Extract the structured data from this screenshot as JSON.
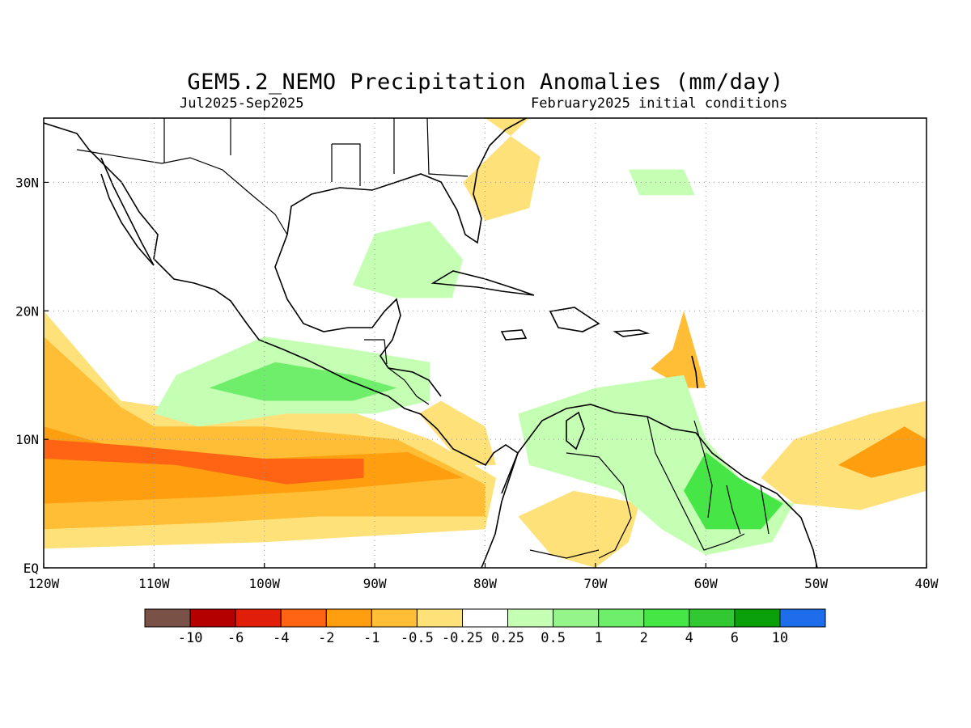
{
  "title": "GEM5.2_NEMO Precipitation Anomalies (mm/day)",
  "subtitle_left": "Jul2025-Sep2025",
  "subtitle_right": "February2025 initial conditions",
  "map": {
    "lon_range": [
      -120,
      -40
    ],
    "lat_range": [
      0,
      35
    ],
    "x_ticks": [
      {
        "value": -120,
        "label": "120W"
      },
      {
        "value": -110,
        "label": "110W"
      },
      {
        "value": -100,
        "label": "100W"
      },
      {
        "value": -90,
        "label": "90W"
      },
      {
        "value": -80,
        "label": "80W"
      },
      {
        "value": -70,
        "label": "70W"
      },
      {
        "value": -60,
        "label": "60W"
      },
      {
        "value": -50,
        "label": "50W"
      },
      {
        "value": -40,
        "label": "40W"
      }
    ],
    "y_ticks": [
      {
        "value": 0,
        "label": "EQ"
      },
      {
        "value": 10,
        "label": "10N"
      },
      {
        "value": 20,
        "label": "20N"
      },
      {
        "value": 30,
        "label": "30N"
      }
    ],
    "grid": "dotted"
  },
  "colorbar": {
    "colors": [
      "#7a5146",
      "#b40000",
      "#e01e0a",
      "#ff6414",
      "#ff9f10",
      "#ffbe36",
      "#ffe17a",
      "#ffffff",
      "#c4ffb4",
      "#96f58a",
      "#6eee6a",
      "#46e646",
      "#32c832",
      "#0aa00a",
      "#1e6eeb"
    ],
    "labels": [
      "-10",
      "-6",
      "-4",
      "-2",
      "-1",
      "-0.5",
      "-0.25",
      "0.25",
      "0.5",
      "1",
      "2",
      "4",
      "6",
      "10"
    ]
  },
  "chart_data": {
    "type": "heatmap",
    "variable": "Precipitation Anomalies (mm/day)",
    "levels": [
      -10,
      -6,
      -4,
      -2,
      -1,
      -0.5,
      -0.25,
      0.25,
      0.5,
      1,
      2,
      4,
      6,
      10
    ],
    "regions": [
      {
        "level": -0.5,
        "lonlat": [
          [
            -120,
            1.5
          ],
          [
            -100,
            2
          ],
          [
            -90,
            2.5
          ],
          [
            -80,
            3
          ],
          [
            -79,
            7
          ],
          [
            -85,
            10
          ],
          [
            -95,
            13
          ],
          [
            -105,
            12
          ],
          [
            -113,
            13
          ],
          [
            -120,
            20
          ]
        ]
      },
      {
        "level": -1,
        "lonlat": [
          [
            -120,
            3
          ],
          [
            -105,
            3.5
          ],
          [
            -95,
            4
          ],
          [
            -80,
            4
          ],
          [
            -80,
            6.5
          ],
          [
            -88,
            10
          ],
          [
            -100,
            11
          ],
          [
            -110,
            11
          ],
          [
            -113,
            12.5
          ],
          [
            -120,
            18
          ]
        ]
      },
      {
        "level": -2,
        "lonlat": [
          [
            -120,
            5
          ],
          [
            -105,
            5.5
          ],
          [
            -95,
            6
          ],
          [
            -82,
            7
          ],
          [
            -87,
            9
          ],
          [
            -100,
            8.5
          ],
          [
            -112,
            9
          ],
          [
            -120,
            11
          ]
        ]
      },
      {
        "level": -4,
        "lonlat": [
          [
            -120,
            8.5
          ],
          [
            -108,
            8
          ],
          [
            -98,
            6.5
          ],
          [
            -91,
            7
          ],
          [
            -91,
            8.5
          ],
          [
            -100,
            8.5
          ],
          [
            -112,
            9.5
          ],
          [
            -120,
            10
          ]
        ]
      },
      {
        "level": -0.5,
        "lonlat": [
          [
            -52,
            10
          ],
          [
            -45,
            12
          ],
          [
            -40,
            13
          ],
          [
            -40,
            6
          ],
          [
            -46,
            4.5
          ],
          [
            -52,
            5
          ],
          [
            -55,
            7
          ]
        ]
      },
      {
        "level": -2,
        "lonlat": [
          [
            -48,
            8
          ],
          [
            -42,
            11
          ],
          [
            -40,
            10
          ],
          [
            -40,
            8
          ],
          [
            -45,
            7
          ]
        ]
      },
      {
        "level": -1,
        "lonlat": [
          [
            -62,
            20
          ],
          [
            -63,
            17
          ],
          [
            -65,
            15.5
          ],
          [
            -62,
            14
          ],
          [
            -60,
            14
          ]
        ]
      },
      {
        "level": -0.5,
        "lonlat": [
          [
            -80,
            35
          ],
          [
            -75,
            32
          ],
          [
            -76,
            28
          ],
          [
            -80,
            27
          ],
          [
            -82,
            30
          ],
          [
            -76,
            35
          ]
        ]
      },
      {
        "level": -0.5,
        "lonlat": [
          [
            -82,
            8
          ],
          [
            -86,
            12
          ],
          [
            -84,
            13
          ],
          [
            -80,
            11
          ],
          [
            -79,
            8
          ]
        ]
      },
      {
        "level": -0.5,
        "lonlat": [
          [
            -77,
            4
          ],
          [
            -74,
            1
          ],
          [
            -70,
            0
          ],
          [
            -67,
            2
          ],
          [
            -66,
            5
          ],
          [
            -72,
            6
          ]
        ]
      },
      {
        "level": 0.25,
        "lonlat": [
          [
            -108,
            15
          ],
          [
            -100,
            18
          ],
          [
            -92,
            17
          ],
          [
            -85,
            16
          ],
          [
            -85,
            13
          ],
          [
            -90,
            12
          ],
          [
            -98,
            12
          ],
          [
            -106,
            11
          ],
          [
            -110,
            12
          ]
        ]
      },
      {
        "level": 1,
        "lonlat": [
          [
            -105,
            14
          ],
          [
            -99,
            16
          ],
          [
            -92,
            15
          ],
          [
            -88,
            14
          ],
          [
            -92,
            13
          ],
          [
            -100,
            13
          ]
        ]
      },
      {
        "level": 0.25,
        "lonlat": [
          [
            -77,
            12
          ],
          [
            -70,
            14
          ],
          [
            -62,
            15
          ],
          [
            -60,
            10
          ],
          [
            -56,
            6
          ],
          [
            -52,
            5
          ],
          [
            -54,
            2
          ],
          [
            -60,
            1
          ],
          [
            -64,
            3
          ],
          [
            -68,
            6
          ],
          [
            -72,
            7
          ],
          [
            -76,
            8
          ]
        ]
      },
      {
        "level": 2,
        "lonlat": [
          [
            -60,
            9
          ],
          [
            -57,
            7
          ],
          [
            -53,
            5
          ],
          [
            -55,
            3
          ],
          [
            -60,
            3
          ],
          [
            -62,
            6
          ]
        ]
      },
      {
        "level": 0.25,
        "lonlat": [
          [
            -90,
            26
          ],
          [
            -85,
            27
          ],
          [
            -82,
            24
          ],
          [
            -83,
            21
          ],
          [
            -88,
            21
          ],
          [
            -92,
            22
          ]
        ]
      },
      {
        "level": 0.25,
        "lonlat": [
          [
            -67,
            31
          ],
          [
            -62,
            31
          ],
          [
            -61,
            29
          ],
          [
            -66,
            29
          ]
        ]
      }
    ]
  }
}
